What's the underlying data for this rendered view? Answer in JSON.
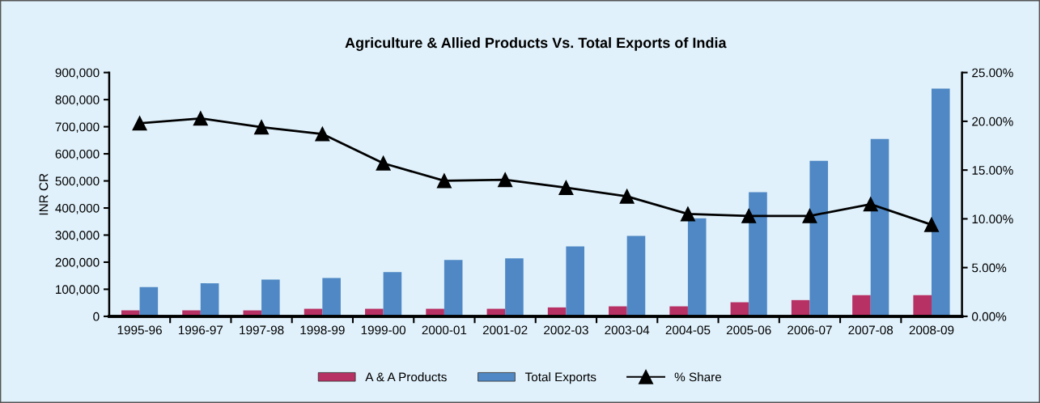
{
  "chart_data": {
    "type": "bar",
    "title": "Agriculture & Allied Products Vs. Total Exports of India",
    "ylabel": "INR CR",
    "categories": [
      "1995-96",
      "1996-97",
      "1997-98",
      "1998-99",
      "1999-00",
      "2000-01",
      "2001-02",
      "2002-03",
      "2003-04",
      "2004-05",
      "2005-06",
      "2006-07",
      "2007-08",
      "2008-09"
    ],
    "series": [
      {
        "name": "A & A Products",
        "color": "#b83164",
        "values": [
          22000,
          22000,
          22000,
          28000,
          28000,
          28000,
          28000,
          33000,
          37000,
          37000,
          52000,
          60000,
          78000,
          78000
        ]
      },
      {
        "name": "Total Exports",
        "color": "#4f88c4",
        "values": [
          108000,
          122000,
          136000,
          142000,
          163000,
          208000,
          214000,
          258000,
          297000,
          362000,
          458000,
          574000,
          655000,
          841000
        ]
      },
      {
        "name": "% Share",
        "type": "line",
        "axis": "y2",
        "color": "#000000",
        "marker": "triangle",
        "values": [
          19.8,
          20.3,
          19.4,
          18.7,
          15.7,
          13.9,
          14.0,
          13.2,
          12.3,
          10.5,
          10.3,
          10.3,
          11.5,
          9.4
        ]
      }
    ],
    "ylim": [
      0,
      900000
    ],
    "yticks": [
      {
        "value": 0,
        "label": "0"
      },
      {
        "value": 100000,
        "label": "100,000"
      },
      {
        "value": 200000,
        "label": "200,000"
      },
      {
        "value": 300000,
        "label": "300,000"
      },
      {
        "value": 400000,
        "label": "400,000"
      },
      {
        "value": 500000,
        "label": "500,000"
      },
      {
        "value": 600000,
        "label": "600,000"
      },
      {
        "value": 700000,
        "label": "700,000"
      },
      {
        "value": 800000,
        "label": "800,000"
      },
      {
        "value": 900000,
        "label": "900,000"
      }
    ],
    "y2lim": [
      0,
      25
    ],
    "y2ticks": [
      {
        "value": 0,
        "label": "0.00%"
      },
      {
        "value": 5,
        "label": "5.00%"
      },
      {
        "value": 10,
        "label": "10.00%"
      },
      {
        "value": 15,
        "label": "15.00%"
      },
      {
        "value": 20,
        "label": "20.00%"
      },
      {
        "value": 25,
        "label": "25.00%"
      }
    ],
    "grid": false,
    "legend": "bottom"
  }
}
